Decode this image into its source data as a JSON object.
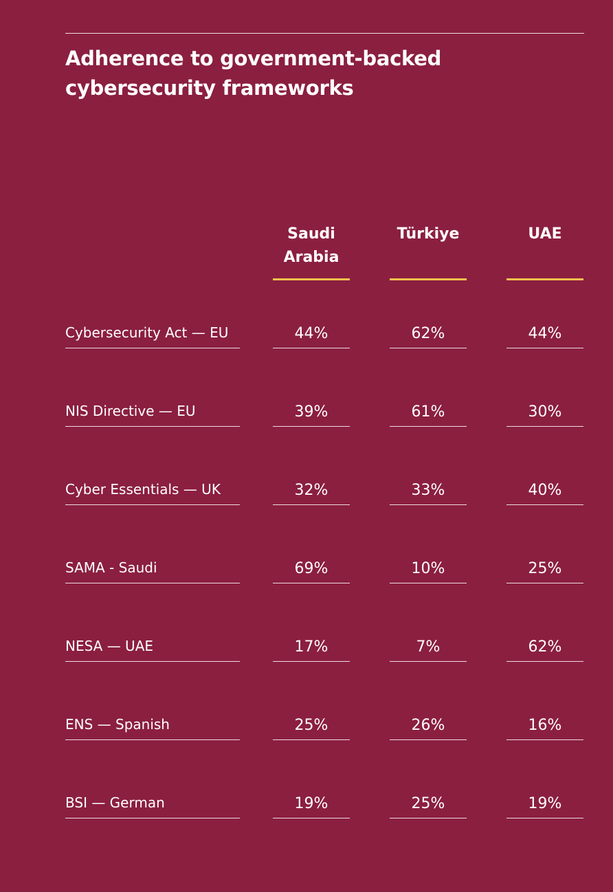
{
  "header": {
    "title": "Adherence to government-backed cybersecurity frameworks"
  },
  "table": {
    "columns": [
      "Saudi Arabia",
      "Türkiye",
      "UAE"
    ],
    "rows": [
      {
        "label": "Cybersecurity Act — EU",
        "values": [
          "44%",
          "62%",
          "44%"
        ]
      },
      {
        "label": "NIS Directive — EU",
        "values": [
          "39%",
          "61%",
          "30%"
        ]
      },
      {
        "label": "Cyber Essentials — UK",
        "values": [
          "32%",
          "33%",
          "40%"
        ]
      },
      {
        "label": "SAMA - Saudi",
        "values": [
          "69%",
          "10%",
          "25%"
        ]
      },
      {
        "label": "NESA — UAE",
        "values": [
          "17%",
          "7%",
          "62%"
        ]
      },
      {
        "label": "ENS — Spanish",
        "values": [
          "25%",
          "26%",
          "16%"
        ]
      },
      {
        "label": "BSI — German",
        "values": [
          "19%",
          "25%",
          "19%"
        ]
      }
    ]
  }
}
